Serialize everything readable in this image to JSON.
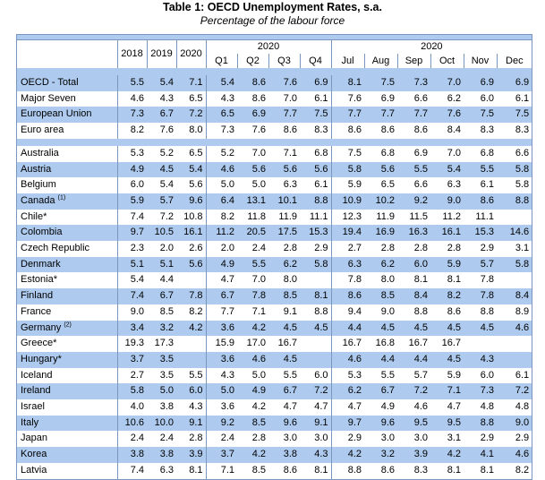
{
  "title": "Table 1: OECD  Unemployment Rates, s.a.",
  "subtitle": "Percentage  of the labour force",
  "headers": {
    "years": [
      "2018",
      "2019",
      "2020"
    ],
    "quarter_group": "2020",
    "quarters": [
      "Q1",
      "Q2",
      "Q3",
      "Q4"
    ],
    "month_group": "2020",
    "months": [
      "Jul",
      "Aug",
      "Sep",
      "Oct",
      "Nov",
      "Dec"
    ]
  },
  "group1": [
    {
      "name": "OECD - Total",
      "vals": [
        "5.5",
        "5.4",
        "7.1",
        "5.4",
        "8.6",
        "7.6",
        "6.9",
        "8.1",
        "7.5",
        "7.3",
        "7.0",
        "6.9",
        "6.9"
      ]
    },
    {
      "name": "Major Seven",
      "vals": [
        "4.6",
        "4.3",
        "6.5",
        "4.3",
        "8.6",
        "7.0",
        "6.1",
        "7.6",
        "6.9",
        "6.6",
        "6.2",
        "6.0",
        "6.1"
      ]
    },
    {
      "name": "European Union",
      "vals": [
        "7.3",
        "6.7",
        "7.2",
        "6.5",
        "6.9",
        "7.7",
        "7.5",
        "7.7",
        "7.7",
        "7.7",
        "7.6",
        "7.5",
        "7.5"
      ]
    },
    {
      "name": "Euro area",
      "vals": [
        "8.2",
        "7.6",
        "8.0",
        "7.3",
        "7.6",
        "8.6",
        "8.3",
        "8.6",
        "8.6",
        "8.6",
        "8.4",
        "8.3",
        "8.3"
      ]
    }
  ],
  "group2": [
    {
      "name": "Australia",
      "sup": "",
      "vals": [
        "5.3",
        "5.2",
        "6.5",
        "5.2",
        "7.0",
        "7.1",
        "6.8",
        "7.5",
        "6.8",
        "6.9",
        "7.0",
        "6.8",
        "6.6"
      ]
    },
    {
      "name": "Austria",
      "sup": "",
      "vals": [
        "4.9",
        "4.5",
        "5.4",
        "4.6",
        "5.6",
        "5.6",
        "5.6",
        "5.8",
        "5.6",
        "5.5",
        "5.4",
        "5.5",
        "5.8"
      ]
    },
    {
      "name": "Belgium",
      "sup": "",
      "vals": [
        "6.0",
        "5.4",
        "5.6",
        "5.0",
        "5.0",
        "6.3",
        "6.1",
        "5.9",
        "6.5",
        "6.6",
        "6.3",
        "6.1",
        "5.8"
      ]
    },
    {
      "name": "Canada",
      "sup": "(1)",
      "vals": [
        "5.9",
        "5.7",
        "9.6",
        "6.4",
        "13.1",
        "10.1",
        "8.8",
        "10.9",
        "10.2",
        "9.2",
        "9.0",
        "8.6",
        "8.8"
      ]
    },
    {
      "name": "Chile*",
      "sup": "",
      "vals": [
        "7.4",
        "7.2",
        "10.8",
        "8.2",
        "11.8",
        "11.9",
        "11.1",
        "12.3",
        "11.9",
        "11.5",
        "11.2",
        "11.1",
        ""
      ]
    },
    {
      "name": "Colombia",
      "sup": "",
      "vals": [
        "9.7",
        "10.5",
        "16.1",
        "11.2",
        "20.5",
        "17.5",
        "15.3",
        "19.4",
        "16.9",
        "16.3",
        "16.1",
        "15.3",
        "14.6"
      ]
    },
    {
      "name": "Czech Republic",
      "sup": "",
      "vals": [
        "2.3",
        "2.0",
        "2.6",
        "2.0",
        "2.4",
        "2.8",
        "2.9",
        "2.7",
        "2.8",
        "2.8",
        "2.8",
        "2.9",
        "3.1"
      ]
    },
    {
      "name": "Denmark",
      "sup": "",
      "vals": [
        "5.1",
        "5.1",
        "5.6",
        "4.9",
        "5.5",
        "6.2",
        "5.8",
        "6.3",
        "6.2",
        "6.0",
        "5.9",
        "5.7",
        "5.8"
      ]
    },
    {
      "name": "Estonia*",
      "sup": "",
      "vals": [
        "5.4",
        "4.4",
        "",
        "4.7",
        "7.0",
        "8.0",
        "",
        "7.8",
        "8.0",
        "8.1",
        "8.1",
        "7.8",
        ""
      ]
    },
    {
      "name": "Finland",
      "sup": "",
      "vals": [
        "7.4",
        "6.7",
        "7.8",
        "6.7",
        "7.8",
        "8.5",
        "8.1",
        "8.6",
        "8.5",
        "8.4",
        "8.2",
        "7.8",
        "8.4"
      ]
    },
    {
      "name": "France",
      "sup": "",
      "vals": [
        "9.0",
        "8.5",
        "8.2",
        "7.7",
        "7.1",
        "9.1",
        "8.8",
        "9.4",
        "9.0",
        "8.8",
        "8.6",
        "8.8",
        "8.9"
      ]
    },
    {
      "name": "Germany",
      "sup": "(2)",
      "vals": [
        "3.4",
        "3.2",
        "4.2",
        "3.6",
        "4.2",
        "4.5",
        "4.5",
        "4.4",
        "4.5",
        "4.5",
        "4.5",
        "4.5",
        "4.6"
      ]
    },
    {
      "name": "Greece*",
      "sup": "",
      "vals": [
        "19.3",
        "17.3",
        "",
        "15.9",
        "17.0",
        "16.7",
        "",
        "16.7",
        "16.8",
        "16.7",
        "16.7",
        "",
        ""
      ]
    },
    {
      "name": "Hungary*",
      "sup": "",
      "vals": [
        "3.7",
        "3.5",
        "",
        "3.6",
        "4.6",
        "4.5",
        "",
        "4.6",
        "4.4",
        "4.4",
        "4.5",
        "4.3",
        ""
      ]
    },
    {
      "name": "Iceland",
      "sup": "",
      "vals": [
        "2.7",
        "3.5",
        "5.5",
        "4.3",
        "5.0",
        "5.5",
        "6.0",
        "5.3",
        "5.5",
        "5.7",
        "5.9",
        "6.0",
        "6.1"
      ]
    },
    {
      "name": "Ireland",
      "sup": "",
      "vals": [
        "5.8",
        "5.0",
        "6.0",
        "5.0",
        "4.9",
        "6.7",
        "7.2",
        "6.2",
        "6.7",
        "7.2",
        "7.1",
        "7.3",
        "7.2"
      ]
    },
    {
      "name": "Israel",
      "sup": "",
      "vals": [
        "4.0",
        "3.8",
        "4.3",
        "3.6",
        "4.2",
        "4.7",
        "4.7",
        "4.7",
        "4.9",
        "4.6",
        "4.7",
        "4.8",
        "4.8"
      ]
    },
    {
      "name": "Italy",
      "sup": "",
      "vals": [
        "10.6",
        "10.0",
        "9.1",
        "9.2",
        "8.5",
        "9.6",
        "9.1",
        "9.7",
        "9.6",
        "9.5",
        "9.5",
        "8.8",
        "9.0"
      ]
    },
    {
      "name": "Japan",
      "sup": "",
      "vals": [
        "2.4",
        "2.4",
        "2.8",
        "2.4",
        "2.8",
        "3.0",
        "3.0",
        "2.9",
        "3.0",
        "3.0",
        "3.1",
        "2.9",
        "2.9"
      ]
    },
    {
      "name": "Korea",
      "sup": "",
      "vals": [
        "3.8",
        "3.8",
        "3.9",
        "3.7",
        "4.2",
        "3.8",
        "4.3",
        "4.2",
        "3.2",
        "3.9",
        "4.2",
        "4.1",
        "4.6"
      ]
    },
    {
      "name": "Latvia",
      "sup": "",
      "vals": [
        "7.4",
        "6.3",
        "8.1",
        "7.1",
        "8.5",
        "8.6",
        "8.1",
        "8.8",
        "8.6",
        "8.3",
        "8.1",
        "8.1",
        "8.2"
      ]
    }
  ],
  "colors": {
    "blue": "#aecbef",
    "white": "#ffffff",
    "border": "#7a97c0"
  }
}
